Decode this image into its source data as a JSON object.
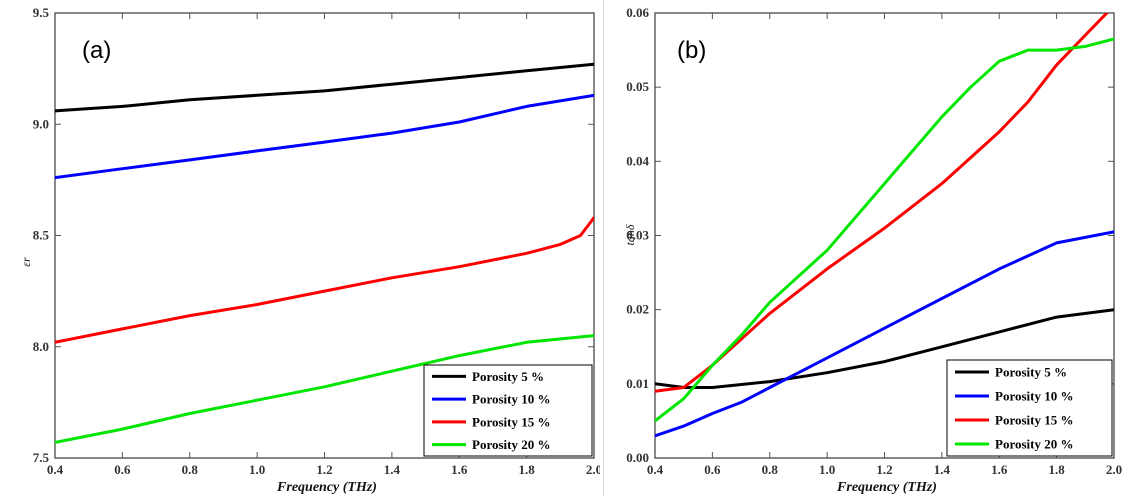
{
  "chart_data": [
    {
      "type": "line",
      "panel_label": "(a)",
      "xlabel": "Frequency (THz)",
      "ylabel": "εr",
      "xlim": [
        0.4,
        2.0
      ],
      "ylim": [
        7.5,
        9.5
      ],
      "xticks": [
        "0.4",
        "0.6",
        "0.8",
        "1.0",
        "1.2",
        "1.4",
        "1.6",
        "1.8",
        "2.0"
      ],
      "yticks": [
        "7.5",
        "8.0",
        "8.5",
        "9.0",
        "9.5"
      ],
      "grid": false,
      "legend_position": "bottom-right",
      "series": [
        {
          "name": "Porosity 5 %",
          "color": "#000000",
          "points": [
            [
              0.4,
              9.06
            ],
            [
              0.6,
              9.08
            ],
            [
              0.8,
              9.11
            ],
            [
              1.0,
              9.13
            ],
            [
              1.2,
              9.15
            ],
            [
              1.4,
              9.18
            ],
            [
              1.6,
              9.21
            ],
            [
              1.8,
              9.24
            ],
            [
              2.0,
              9.27
            ]
          ]
        },
        {
          "name": "Porosity 10 %",
          "color": "#0000ff",
          "points": [
            [
              0.4,
              8.76
            ],
            [
              0.6,
              8.8
            ],
            [
              0.8,
              8.84
            ],
            [
              1.0,
              8.88
            ],
            [
              1.2,
              8.92
            ],
            [
              1.4,
              8.96
            ],
            [
              1.6,
              9.01
            ],
            [
              1.8,
              9.08
            ],
            [
              2.0,
              9.13
            ]
          ]
        },
        {
          "name": "Porosity 15 %",
          "color": "#ff0000",
          "points": [
            [
              0.4,
              8.02
            ],
            [
              0.6,
              8.08
            ],
            [
              0.8,
              8.14
            ],
            [
              1.0,
              8.19
            ],
            [
              1.2,
              8.25
            ],
            [
              1.4,
              8.31
            ],
            [
              1.6,
              8.36
            ],
            [
              1.8,
              8.42
            ],
            [
              1.9,
              8.46
            ],
            [
              1.96,
              8.5
            ],
            [
              2.0,
              8.58
            ]
          ]
        },
        {
          "name": "Porosity 20 %",
          "color": "#00e600",
          "points": [
            [
              0.4,
              7.57
            ],
            [
              0.6,
              7.63
            ],
            [
              0.8,
              7.7
            ],
            [
              1.0,
              7.76
            ],
            [
              1.2,
              7.82
            ],
            [
              1.4,
              7.89
            ],
            [
              1.6,
              7.96
            ],
            [
              1.8,
              8.02
            ],
            [
              2.0,
              8.05
            ]
          ]
        }
      ]
    },
    {
      "type": "line",
      "panel_label": "(b)",
      "xlabel": "Frequency (THz)",
      "ylabel": "tanδ",
      "xlim": [
        0.4,
        2.0
      ],
      "ylim": [
        0.0,
        0.06
      ],
      "xticks": [
        "0.4",
        "0.6",
        "0.8",
        "1.0",
        "1.2",
        "1.4",
        "1.6",
        "1.8",
        "2.0"
      ],
      "yticks": [
        "0.00",
        "0.01",
        "0.02",
        "0.03",
        "0.04",
        "0.05",
        "0.06"
      ],
      "grid": false,
      "legend_position": "bottom-right",
      "series": [
        {
          "name": "Porosity 5 %",
          "color": "#000000",
          "points": [
            [
              0.4,
              0.01
            ],
            [
              0.5,
              0.0095
            ],
            [
              0.6,
              0.0095
            ],
            [
              0.8,
              0.0103
            ],
            [
              1.0,
              0.0115
            ],
            [
              1.2,
              0.013
            ],
            [
              1.4,
              0.015
            ],
            [
              1.6,
              0.017
            ],
            [
              1.8,
              0.019
            ],
            [
              2.0,
              0.02
            ]
          ]
        },
        {
          "name": "Porosity 10 %",
          "color": "#0000ff",
          "points": [
            [
              0.4,
              0.003
            ],
            [
              0.5,
              0.0043
            ],
            [
              0.6,
              0.006
            ],
            [
              0.7,
              0.0075
            ],
            [
              0.8,
              0.0095
            ],
            [
              1.0,
              0.0135
            ],
            [
              1.2,
              0.0175
            ],
            [
              1.4,
              0.0215
            ],
            [
              1.6,
              0.0255
            ],
            [
              1.8,
              0.029
            ],
            [
              2.0,
              0.0305
            ]
          ]
        },
        {
          "name": "Porosity 15 %",
          "color": "#ff0000",
          "points": [
            [
              0.4,
              0.009
            ],
            [
              0.5,
              0.0095
            ],
            [
              0.6,
              0.0125
            ],
            [
              0.7,
              0.016
            ],
            [
              0.8,
              0.0195
            ],
            [
              1.0,
              0.0255
            ],
            [
              1.2,
              0.031
            ],
            [
              1.4,
              0.037
            ],
            [
              1.6,
              0.044
            ],
            [
              1.7,
              0.048
            ],
            [
              1.8,
              0.053
            ],
            [
              1.9,
              0.057
            ],
            [
              2.0,
              0.061
            ]
          ]
        },
        {
          "name": "Porosity 20 %",
          "color": "#00e600",
          "points": [
            [
              0.4,
              0.005
            ],
            [
              0.5,
              0.008
            ],
            [
              0.6,
              0.0125
            ],
            [
              0.7,
              0.0165
            ],
            [
              0.8,
              0.021
            ],
            [
              1.0,
              0.028
            ],
            [
              1.2,
              0.037
            ],
            [
              1.4,
              0.046
            ],
            [
              1.5,
              0.05
            ],
            [
              1.6,
              0.0535
            ],
            [
              1.7,
              0.055
            ],
            [
              1.8,
              0.055
            ],
            [
              1.9,
              0.0555
            ],
            [
              2.0,
              0.0565
            ]
          ]
        }
      ]
    }
  ]
}
